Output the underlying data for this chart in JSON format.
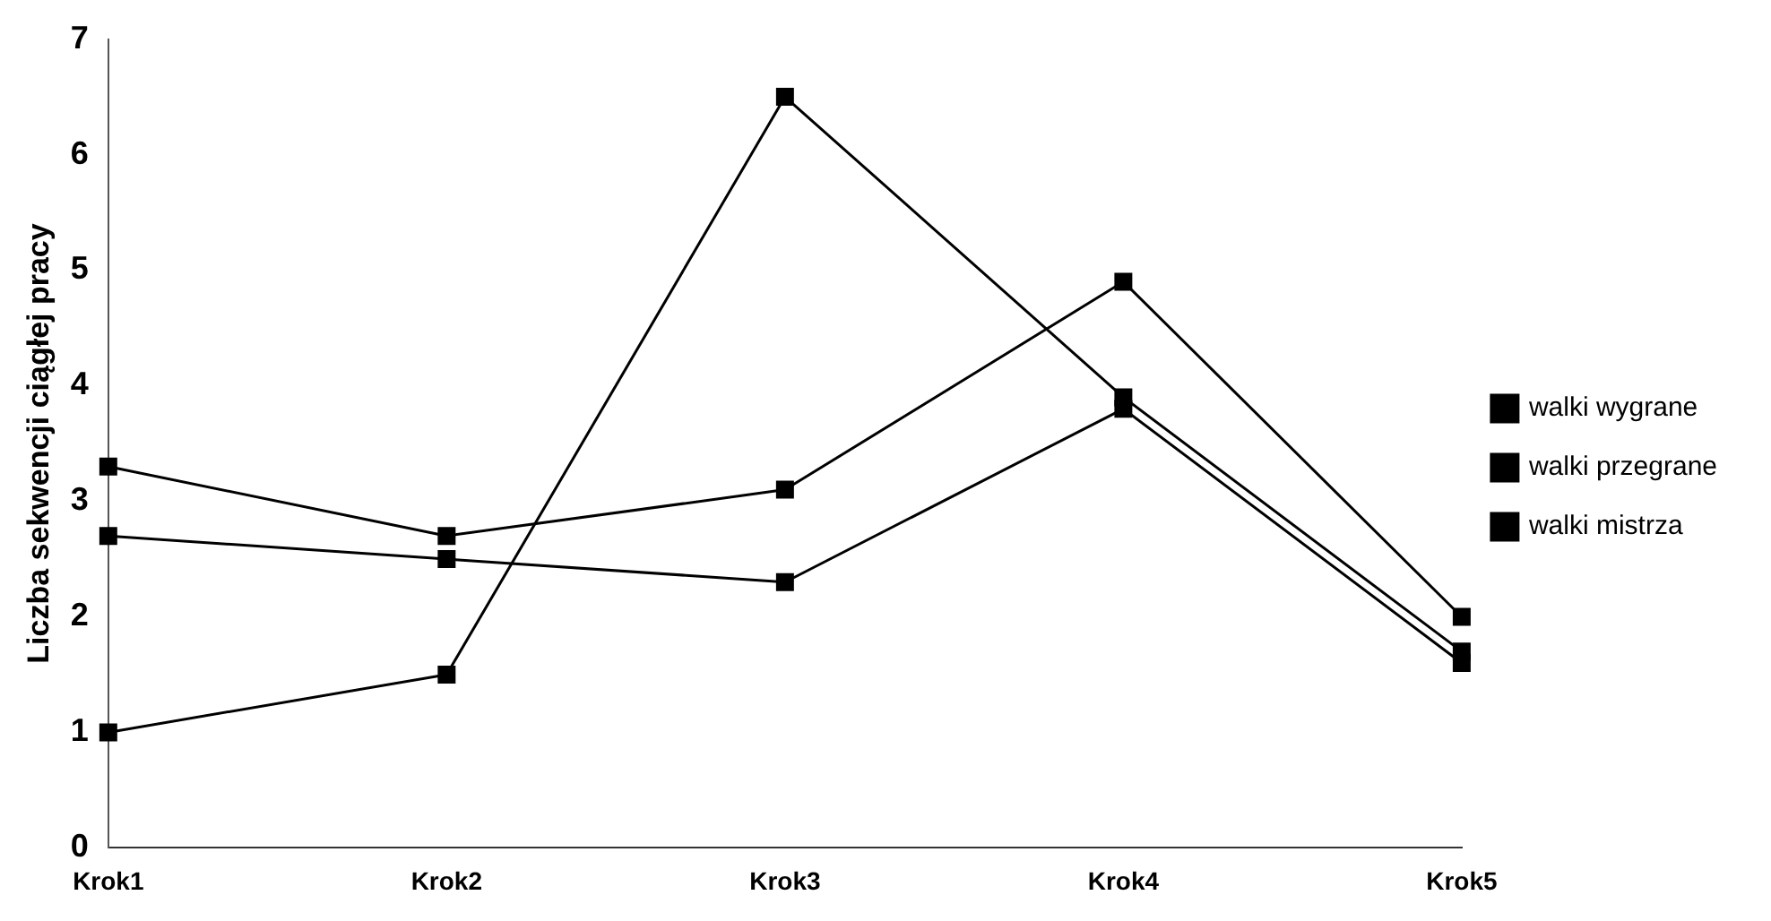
{
  "chart_data": {
    "type": "line",
    "ylabel": "Liczba sekwencji ciągłej pracy",
    "categories": [
      "Krok1",
      "Krok2",
      "Krok3",
      "Krok4",
      "Krok5"
    ],
    "series": [
      {
        "name": "walki wygrane",
        "color": "#000000",
        "values": [
          3.3,
          2.7,
          3.1,
          4.9,
          2.0
        ]
      },
      {
        "name": "walki przegrane",
        "color": "#000000",
        "values": [
          2.7,
          2.5,
          2.3,
          3.8,
          1.6
        ]
      },
      {
        "name": "walki mistrza",
        "color": "#000000",
        "values": [
          1.0,
          1.5,
          6.5,
          3.9,
          1.7
        ]
      }
    ],
    "ylim": [
      0,
      7
    ],
    "yticks": [
      0,
      1,
      2,
      3,
      4,
      5,
      6,
      7
    ],
    "grid": false,
    "legend": "right",
    "marker": "square",
    "line_style": "solid"
  }
}
